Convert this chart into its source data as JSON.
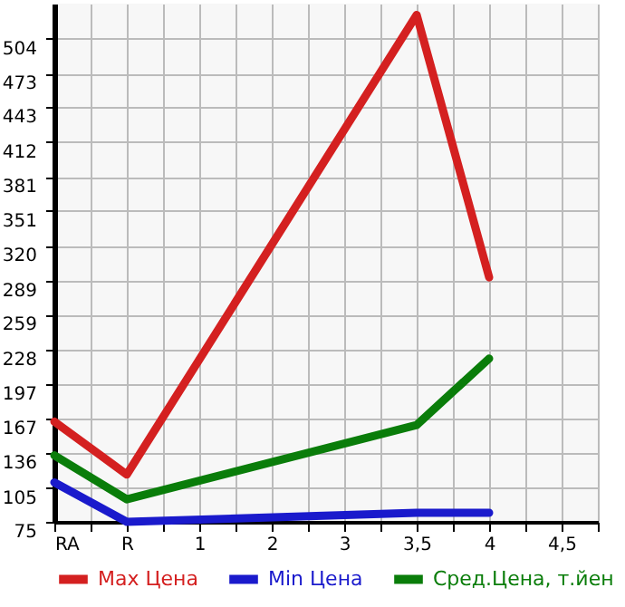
{
  "chart_data": {
    "type": "line",
    "categories": [
      "RA",
      "R",
      "1",
      "2",
      "3",
      "3,5",
      "4",
      "4,5"
    ],
    "series": [
      {
        "name": "Max Цена",
        "color": "#d42020",
        "values": [
          164,
          117,
          null,
          null,
          null,
          525,
          292,
          null
        ]
      },
      {
        "name": "Min Цена",
        "color": "#1a1acc",
        "values": [
          110,
          75,
          null,
          null,
          null,
          83,
          83,
          null
        ]
      },
      {
        "name": "Сред.Цена, т.йен",
        "color": "#0a7d0a",
        "values": [
          134,
          95,
          null,
          null,
          null,
          161,
          220,
          null
        ]
      }
    ],
    "ylim": [
      75,
      535
    ],
    "yticks": [
      75,
      105,
      136,
      167,
      197,
      228,
      259,
      289,
      320,
      351,
      381,
      412,
      443,
      473,
      504
    ],
    "grid": true,
    "legend": "bottom"
  }
}
